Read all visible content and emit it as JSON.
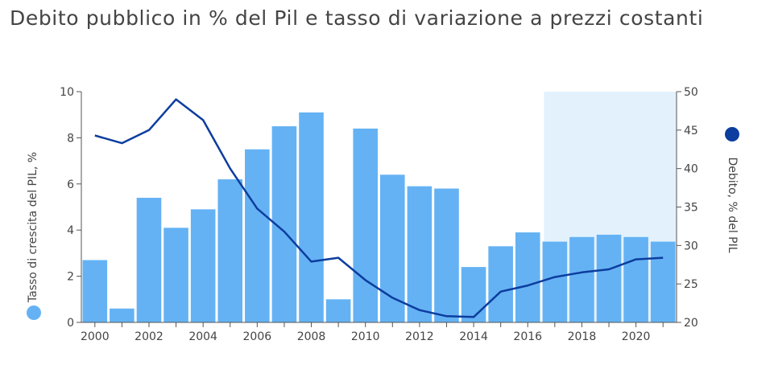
{
  "chart_data": {
    "type": "bar",
    "title": "Debito pubblico in % del Pil e tasso di variazione a prezzi costanti",
    "x": [
      2000,
      2001,
      2002,
      2003,
      2004,
      2005,
      2006,
      2007,
      2008,
      2009,
      2010,
      2011,
      2012,
      2013,
      2014,
      2015,
      2016,
      2017,
      2018,
      2019,
      2020,
      2021
    ],
    "x_tick_labels": [
      "2000",
      "2002",
      "2004",
      "2006",
      "2008",
      "2010",
      "2012",
      "2014",
      "2016",
      "2018",
      "2020"
    ],
    "y_left": {
      "label": "Tasso di crescita del PIL, %",
      "lim": [
        0,
        10
      ],
      "ticks": [
        "0",
        "2",
        "4",
        "6",
        "8",
        "10"
      ]
    },
    "y_right": {
      "label": "Debito, % del PIL",
      "lim": [
        20,
        50
      ],
      "ticks": [
        "20",
        "25",
        "30",
        "35",
        "40",
        "45",
        "50"
      ]
    },
    "series": [
      {
        "name": "Tasso di crescita del PIL, %",
        "type": "bar",
        "axis": "left",
        "color": "#64b2f4",
        "values": [
          2.7,
          0.6,
          5.4,
          4.1,
          4.9,
          6.2,
          7.5,
          8.5,
          9.1,
          1.0,
          8.4,
          6.4,
          5.9,
          5.8,
          2.4,
          3.3,
          3.9,
          3.5,
          3.7,
          3.8,
          3.7,
          3.5
        ]
      },
      {
        "name": "Debito, % del PIL",
        "type": "line",
        "axis": "right",
        "color": "#0d3d9e",
        "values": [
          44.3,
          43.3,
          45.0,
          49.0,
          46.3,
          40.0,
          34.8,
          31.8,
          27.9,
          28.4,
          25.5,
          23.2,
          21.6,
          20.8,
          20.7,
          24.0,
          24.8,
          25.9,
          26.5,
          26.9,
          28.2,
          28.4
        ]
      }
    ],
    "forecast_shade": {
      "from": 2016.6,
      "to": 2021.5,
      "color": "#e3f1fd"
    },
    "grid": false,
    "legend": "axis-side dots"
  }
}
